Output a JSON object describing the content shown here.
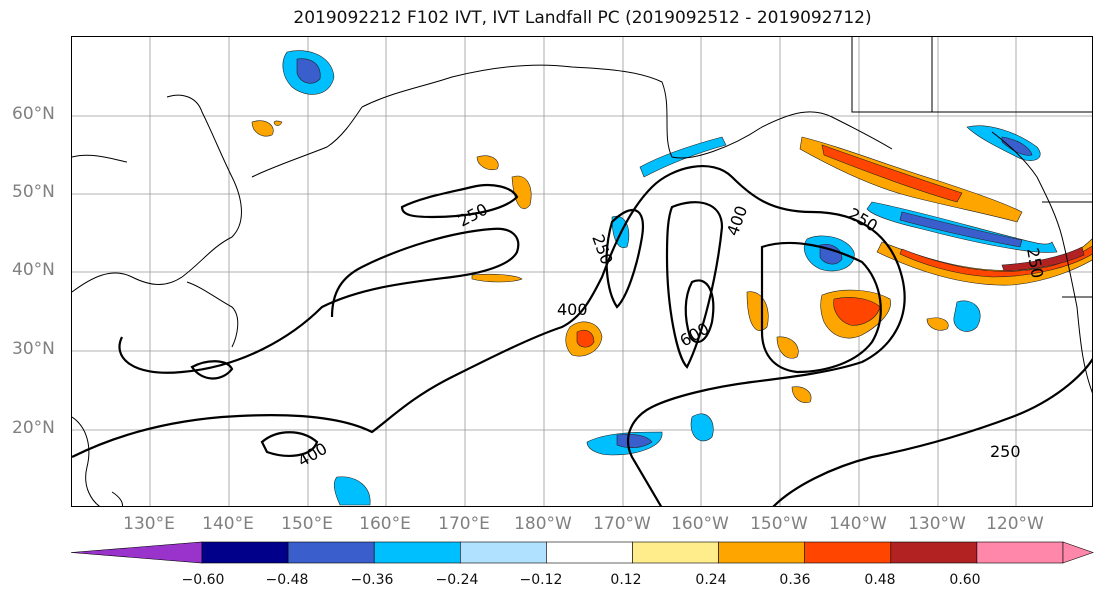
{
  "title": "2019092212 F102 IVT, IVT Landfall PC (2019092512 - 2019092712)",
  "lat_labels": [
    "60°N",
    "50°N",
    "40°N",
    "30°N",
    "20°N"
  ],
  "lon_labels": [
    "130°E",
    "140°E",
    "150°E",
    "160°E",
    "170°E",
    "180°W",
    "170°W",
    "160°W",
    "150°W",
    "140°W",
    "130°W",
    "120°W"
  ],
  "contour_labels": [
    "250",
    "250",
    "400",
    "600",
    "400",
    "250",
    "250",
    "400",
    "250"
  ],
  "colorbar": {
    "tick_labels": [
      "−0.60",
      "−0.48",
      "−0.36",
      "−0.24",
      "−0.12",
      "0.12",
      "0.24",
      "0.36",
      "0.48",
      "0.60"
    ],
    "colors": [
      "#9933cc",
      "#00008b",
      "#3a5fcd",
      "#00bfff",
      "#b0e2ff",
      "#ffffff",
      "#ffec8b",
      "#ffa500",
      "#ff4500",
      "#b22222",
      "#ff88aa",
      "#ff88aa"
    ]
  },
  "colors": {
    "neg_strong": "#3a5fcd",
    "neg_mid": "#00bfff",
    "neg_light": "#b0e2ff",
    "pos_light": "#ffec8b",
    "pos_mid": "#ffa500",
    "pos_strong": "#ff4500",
    "pos_max": "#b22222",
    "gridline": "#999999",
    "axis_label": "#808080"
  }
}
